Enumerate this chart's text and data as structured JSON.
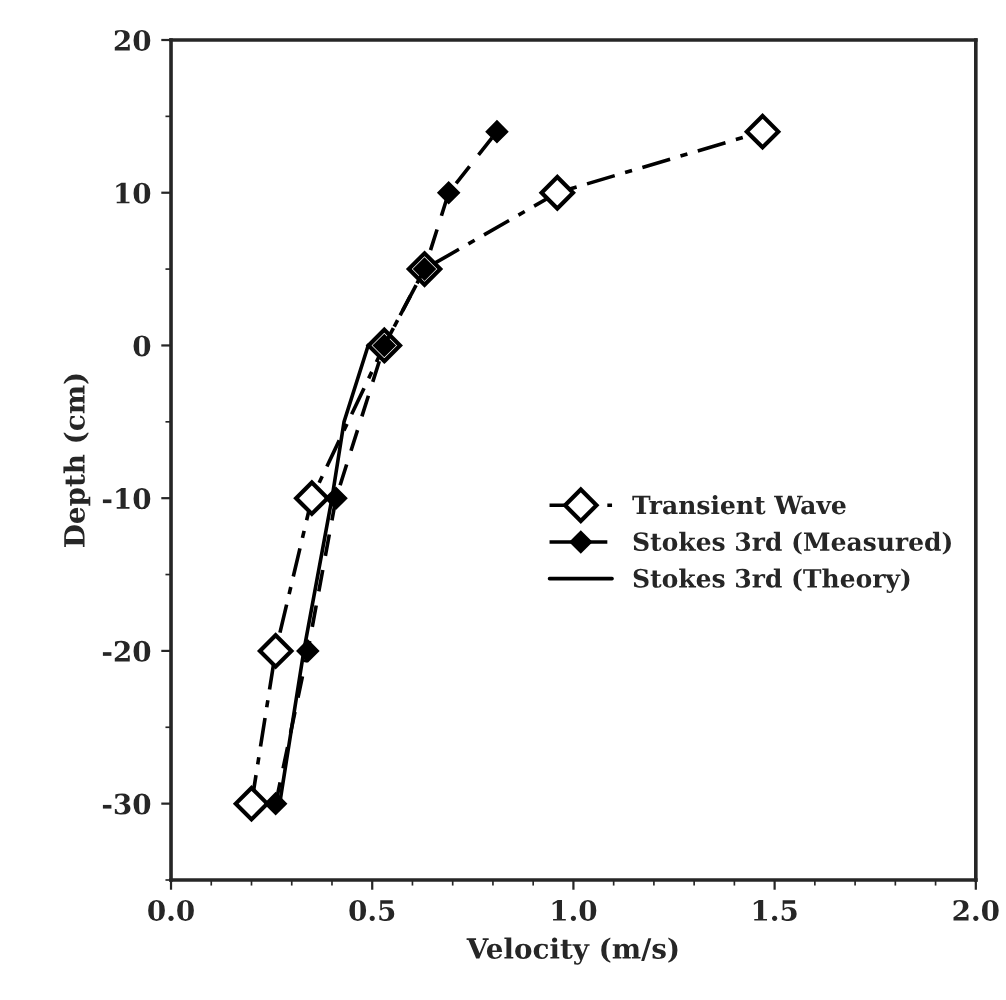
{
  "chart_data": {
    "type": "line",
    "xlabel": "Velocity (m/s)",
    "ylabel": "Depth (cm)",
    "xlim": [
      0,
      2
    ],
    "ylim": [
      -35,
      20
    ],
    "xticks": [
      {
        "value": 0,
        "label": "0.0"
      },
      {
        "value": 0.5,
        "label": "0.5"
      },
      {
        "value": 1,
        "label": "1.0"
      },
      {
        "value": 1.5,
        "label": "1.5"
      },
      {
        "value": 2,
        "label": "2.0"
      }
    ],
    "yticks": [
      -30,
      -20,
      -10,
      0,
      10,
      20
    ],
    "grid": false,
    "legend": "right",
    "series": [
      {
        "name": "Transient Wave",
        "color": "#000000",
        "marker": "diamond",
        "line_style": "dashdot",
        "x": [
          0.2,
          0.26,
          0.35,
          0.53,
          0.63,
          0.96,
          1.47
        ],
        "values": [
          -30,
          -20,
          -10,
          0,
          5,
          10,
          14
        ]
      },
      {
        "name": "Stokes 3rd (Measured)",
        "color": "#000000",
        "marker": "diamond",
        "line_style": "dashed",
        "x": [
          0.26,
          0.34,
          0.41,
          0.53,
          0.63,
          0.69,
          0.81
        ],
        "values": [
          -30,
          -20,
          -10,
          0,
          5,
          10,
          14
        ]
      },
      {
        "name": "Stokes 3rd (Theory)",
        "color": "#000000",
        "marker": "none",
        "line_style": "solid",
        "x": [
          0.27,
          0.33,
          0.4,
          0.43,
          0.49
        ],
        "values": [
          -30,
          -20,
          -10,
          -5,
          0
        ]
      }
    ]
  }
}
